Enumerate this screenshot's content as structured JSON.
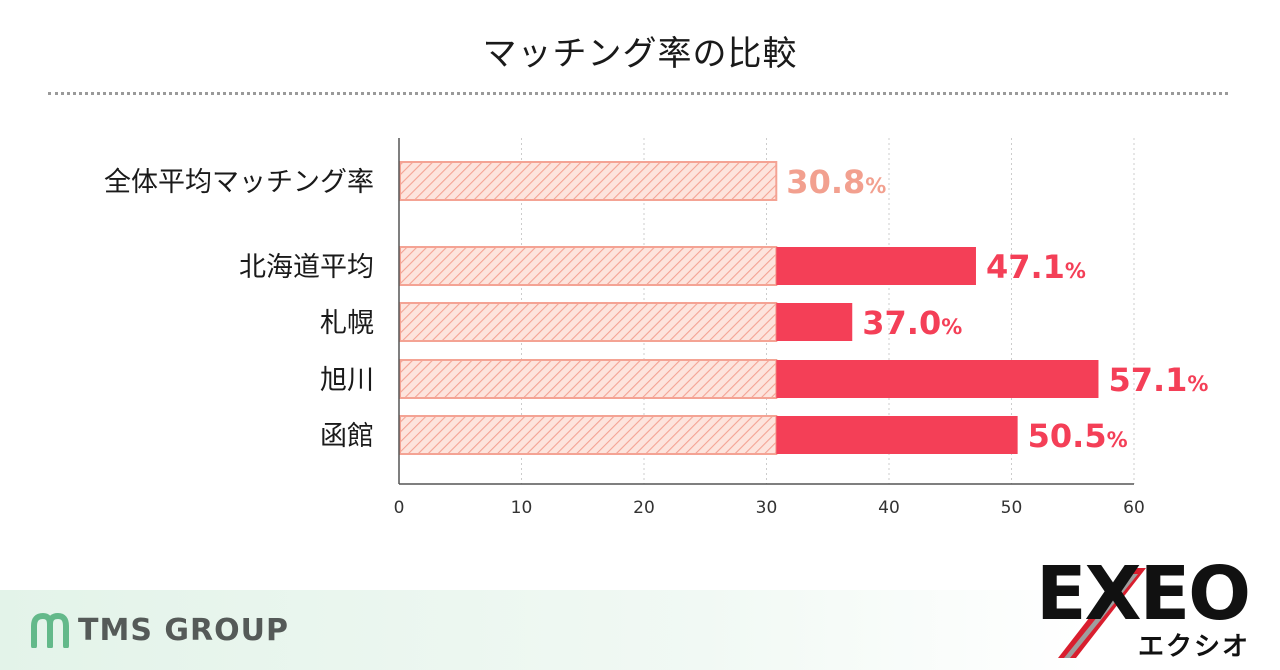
{
  "chart_data": {
    "type": "bar",
    "title": "マッチング率の比較",
    "categories": [
      "全体平均マッチング率",
      "北海道平均",
      "札幌",
      "旭川",
      "函館"
    ],
    "series": [
      {
        "values": [
          30.8,
          47.1,
          37.0,
          57.1,
          50.5
        ]
      }
    ],
    "baseline": 30.8,
    "data_labels": [
      "30.8",
      "47.1",
      "37.0",
      "57.1",
      "50.5"
    ],
    "label_unit": "%",
    "xticks": [
      "0",
      "10",
      "20",
      "30",
      "40",
      "50",
      "60"
    ],
    "xlim": [
      0,
      60
    ],
    "orientation": "horizontal",
    "grid": true,
    "colors": {
      "bar_highlight": "#f43f57",
      "baseline_fill": "#fde4dd",
      "baseline_hatch": "#f4a394",
      "baseline_label": "#f2a08f",
      "highlight_label": "#f43f57",
      "axis": "#555555",
      "grid": "#cccccc"
    }
  },
  "footer": {
    "left_logo": "TMS GROUP",
    "right_logo": "EXEO",
    "right_logo_kana": "エクシオ"
  }
}
